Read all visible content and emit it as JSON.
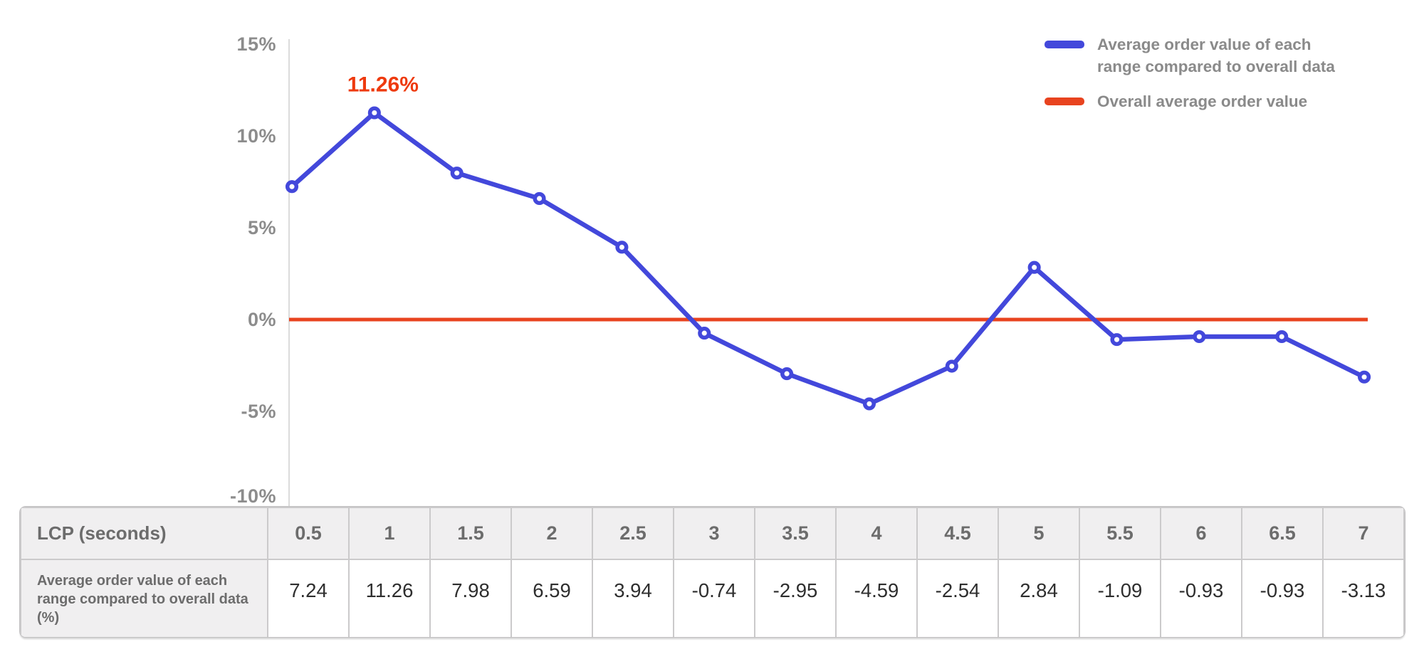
{
  "chart_data": {
    "type": "line",
    "title": "",
    "x_axis_label": "LCP (seconds)",
    "x": [
      0.5,
      1,
      1.5,
      2,
      2.5,
      3,
      3.5,
      4,
      4.5,
      5,
      5.5,
      6,
      6.5,
      7
    ],
    "series": [
      {
        "name": "Average order value of each range compared to overall data",
        "values": [
          7.24,
          11.26,
          7.98,
          6.59,
          3.94,
          -0.74,
          -2.95,
          -4.59,
          -2.54,
          2.84,
          -1.09,
          -0.93,
          -0.93,
          -3.13
        ],
        "color": "#4348DB",
        "marker": "open-circle"
      },
      {
        "name": "Overall average order value",
        "type": "constant-line",
        "value": 0,
        "color": "#E8431F"
      }
    ],
    "yticks": [
      15,
      10,
      5,
      0,
      -5,
      -10
    ],
    "ytick_suffix": "%",
    "ylim": [
      -10.2,
      15.3
    ],
    "grid": false,
    "legend_position": "top-right",
    "annotation": {
      "text": "11.26%",
      "x_index": 1,
      "value": 11.26,
      "color": "#EE3A0E"
    }
  },
  "legend": {
    "items": [
      {
        "label": "Average order value of each range compared to overall data",
        "color": "#4348DB"
      },
      {
        "label": "Overall average order value",
        "color": "#E8431F"
      }
    ]
  },
  "table": {
    "corner_header": "LCP (seconds)",
    "row_header": "Average order value of each range compared to overall data (%)",
    "column_headers": [
      "0.5",
      "1",
      "1.5",
      "2",
      "2.5",
      "3",
      "3.5",
      "4",
      "4.5",
      "5",
      "5.5",
      "6",
      "6.5",
      "7"
    ],
    "values": [
      "7.24",
      "11.26",
      "7.98",
      "6.59",
      "3.94",
      "-0.74",
      "-2.95",
      "-4.59",
      "-2.54",
      "2.84",
      "-1.09",
      "-0.93",
      "-0.93",
      "-3.13"
    ]
  },
  "colors": {
    "series_blue": "#4348DB",
    "baseline_red": "#E8431F",
    "annotation_red": "#EE3A0E",
    "axis_line": "#dbdbdb",
    "axis_text": "#8C8C8C",
    "table_header_text": "#6C6C6C",
    "table_value_text": "#2E2E2E"
  }
}
